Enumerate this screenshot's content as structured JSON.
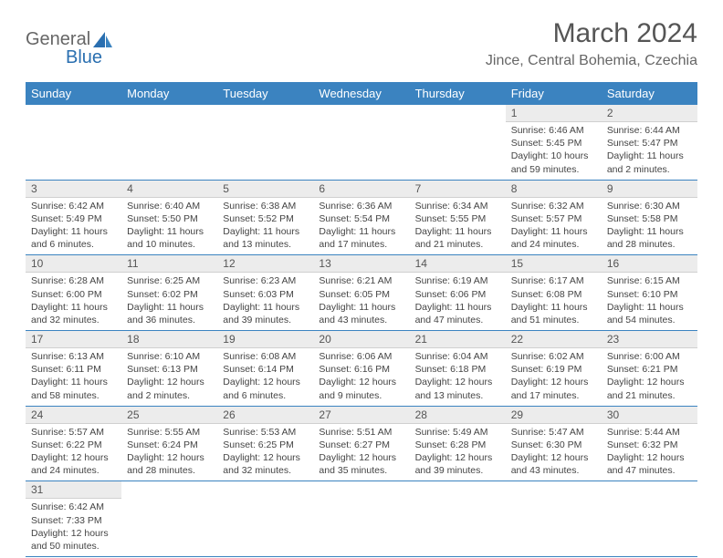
{
  "logo": {
    "text1": "General",
    "text2": "Blue"
  },
  "title": "March 2024",
  "location": "Jince, Central Bohemia, Czechia",
  "colors": {
    "header_bg": "#3b83c0",
    "header_text": "#ffffff",
    "daynum_bg": "#ececec",
    "border": "#3b83c0",
    "body_text": "#444444",
    "title_text": "#555555"
  },
  "weekdays": [
    "Sunday",
    "Monday",
    "Tuesday",
    "Wednesday",
    "Thursday",
    "Friday",
    "Saturday"
  ],
  "weeks": [
    [
      {
        "empty": true
      },
      {
        "empty": true
      },
      {
        "empty": true
      },
      {
        "empty": true
      },
      {
        "empty": true
      },
      {
        "day": "1",
        "sunrise": "Sunrise: 6:46 AM",
        "sunset": "Sunset: 5:45 PM",
        "daylight": "Daylight: 10 hours and 59 minutes."
      },
      {
        "day": "2",
        "sunrise": "Sunrise: 6:44 AM",
        "sunset": "Sunset: 5:47 PM",
        "daylight": "Daylight: 11 hours and 2 minutes."
      }
    ],
    [
      {
        "day": "3",
        "sunrise": "Sunrise: 6:42 AM",
        "sunset": "Sunset: 5:49 PM",
        "daylight": "Daylight: 11 hours and 6 minutes."
      },
      {
        "day": "4",
        "sunrise": "Sunrise: 6:40 AM",
        "sunset": "Sunset: 5:50 PM",
        "daylight": "Daylight: 11 hours and 10 minutes."
      },
      {
        "day": "5",
        "sunrise": "Sunrise: 6:38 AM",
        "sunset": "Sunset: 5:52 PM",
        "daylight": "Daylight: 11 hours and 13 minutes."
      },
      {
        "day": "6",
        "sunrise": "Sunrise: 6:36 AM",
        "sunset": "Sunset: 5:54 PM",
        "daylight": "Daylight: 11 hours and 17 minutes."
      },
      {
        "day": "7",
        "sunrise": "Sunrise: 6:34 AM",
        "sunset": "Sunset: 5:55 PM",
        "daylight": "Daylight: 11 hours and 21 minutes."
      },
      {
        "day": "8",
        "sunrise": "Sunrise: 6:32 AM",
        "sunset": "Sunset: 5:57 PM",
        "daylight": "Daylight: 11 hours and 24 minutes."
      },
      {
        "day": "9",
        "sunrise": "Sunrise: 6:30 AM",
        "sunset": "Sunset: 5:58 PM",
        "daylight": "Daylight: 11 hours and 28 minutes."
      }
    ],
    [
      {
        "day": "10",
        "sunrise": "Sunrise: 6:28 AM",
        "sunset": "Sunset: 6:00 PM",
        "daylight": "Daylight: 11 hours and 32 minutes."
      },
      {
        "day": "11",
        "sunrise": "Sunrise: 6:25 AM",
        "sunset": "Sunset: 6:02 PM",
        "daylight": "Daylight: 11 hours and 36 minutes."
      },
      {
        "day": "12",
        "sunrise": "Sunrise: 6:23 AM",
        "sunset": "Sunset: 6:03 PM",
        "daylight": "Daylight: 11 hours and 39 minutes."
      },
      {
        "day": "13",
        "sunrise": "Sunrise: 6:21 AM",
        "sunset": "Sunset: 6:05 PM",
        "daylight": "Daylight: 11 hours and 43 minutes."
      },
      {
        "day": "14",
        "sunrise": "Sunrise: 6:19 AM",
        "sunset": "Sunset: 6:06 PM",
        "daylight": "Daylight: 11 hours and 47 minutes."
      },
      {
        "day": "15",
        "sunrise": "Sunrise: 6:17 AM",
        "sunset": "Sunset: 6:08 PM",
        "daylight": "Daylight: 11 hours and 51 minutes."
      },
      {
        "day": "16",
        "sunrise": "Sunrise: 6:15 AM",
        "sunset": "Sunset: 6:10 PM",
        "daylight": "Daylight: 11 hours and 54 minutes."
      }
    ],
    [
      {
        "day": "17",
        "sunrise": "Sunrise: 6:13 AM",
        "sunset": "Sunset: 6:11 PM",
        "daylight": "Daylight: 11 hours and 58 minutes."
      },
      {
        "day": "18",
        "sunrise": "Sunrise: 6:10 AM",
        "sunset": "Sunset: 6:13 PM",
        "daylight": "Daylight: 12 hours and 2 minutes."
      },
      {
        "day": "19",
        "sunrise": "Sunrise: 6:08 AM",
        "sunset": "Sunset: 6:14 PM",
        "daylight": "Daylight: 12 hours and 6 minutes."
      },
      {
        "day": "20",
        "sunrise": "Sunrise: 6:06 AM",
        "sunset": "Sunset: 6:16 PM",
        "daylight": "Daylight: 12 hours and 9 minutes."
      },
      {
        "day": "21",
        "sunrise": "Sunrise: 6:04 AM",
        "sunset": "Sunset: 6:18 PM",
        "daylight": "Daylight: 12 hours and 13 minutes."
      },
      {
        "day": "22",
        "sunrise": "Sunrise: 6:02 AM",
        "sunset": "Sunset: 6:19 PM",
        "daylight": "Daylight: 12 hours and 17 minutes."
      },
      {
        "day": "23",
        "sunrise": "Sunrise: 6:00 AM",
        "sunset": "Sunset: 6:21 PM",
        "daylight": "Daylight: 12 hours and 21 minutes."
      }
    ],
    [
      {
        "day": "24",
        "sunrise": "Sunrise: 5:57 AM",
        "sunset": "Sunset: 6:22 PM",
        "daylight": "Daylight: 12 hours and 24 minutes."
      },
      {
        "day": "25",
        "sunrise": "Sunrise: 5:55 AM",
        "sunset": "Sunset: 6:24 PM",
        "daylight": "Daylight: 12 hours and 28 minutes."
      },
      {
        "day": "26",
        "sunrise": "Sunrise: 5:53 AM",
        "sunset": "Sunset: 6:25 PM",
        "daylight": "Daylight: 12 hours and 32 minutes."
      },
      {
        "day": "27",
        "sunrise": "Sunrise: 5:51 AM",
        "sunset": "Sunset: 6:27 PM",
        "daylight": "Daylight: 12 hours and 35 minutes."
      },
      {
        "day": "28",
        "sunrise": "Sunrise: 5:49 AM",
        "sunset": "Sunset: 6:28 PM",
        "daylight": "Daylight: 12 hours and 39 minutes."
      },
      {
        "day": "29",
        "sunrise": "Sunrise: 5:47 AM",
        "sunset": "Sunset: 6:30 PM",
        "daylight": "Daylight: 12 hours and 43 minutes."
      },
      {
        "day": "30",
        "sunrise": "Sunrise: 5:44 AM",
        "sunset": "Sunset: 6:32 PM",
        "daylight": "Daylight: 12 hours and 47 minutes."
      }
    ],
    [
      {
        "day": "31",
        "sunrise": "Sunrise: 6:42 AM",
        "sunset": "Sunset: 7:33 PM",
        "daylight": "Daylight: 12 hours and 50 minutes."
      },
      {
        "empty": true
      },
      {
        "empty": true
      },
      {
        "empty": true
      },
      {
        "empty": true
      },
      {
        "empty": true
      },
      {
        "empty": true
      }
    ]
  ]
}
